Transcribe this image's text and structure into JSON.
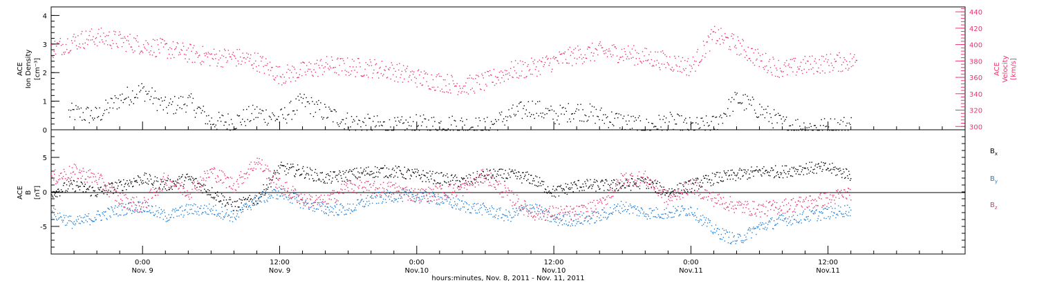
{
  "colors": {
    "black": "#000000",
    "pink": "#e8356b",
    "blue": "#1f7fd6"
  },
  "chart_data": [
    {
      "type": "scatter",
      "panel": "top",
      "ylabel_left_line1": "ACE",
      "ylabel_left_line2": "Ion Density",
      "ylabel_left_units": "[cm⁻³]",
      "ylabel_right_line1": "ACE",
      "ylabel_right_line2": "Velocity",
      "ylabel_right_units": "[km/s]",
      "ylim_left": [
        0,
        4.3
      ],
      "ylim_right": [
        296,
        446
      ],
      "yticks_left": [
        "0",
        "1",
        "2",
        "3",
        "4"
      ],
      "yticks_right": [
        "300",
        "320",
        "340",
        "360",
        "380",
        "400",
        "420",
        "440"
      ],
      "series": [
        {
          "color": "black",
          "axis": "left",
          "hours": [
            -6,
            -4,
            -2,
            0,
            2,
            4,
            6,
            8,
            10,
            12,
            14,
            16,
            18,
            20,
            22,
            24,
            26,
            28,
            30,
            32,
            34,
            36,
            38,
            40,
            42,
            44,
            46,
            48,
            50,
            52,
            54,
            56,
            58,
            60,
            62
          ],
          "values": [
            0.6,
            0.5,
            1.1,
            1.4,
            0.8,
            1.0,
            0.3,
            0.3,
            0.6,
            0.4,
            1.0,
            0.6,
            0.3,
            0.2,
            0.1,
            0.2,
            0.2,
            0.2,
            0.1,
            0.5,
            0.8,
            0.5,
            0.7,
            0.5,
            0.3,
            0.1,
            0.3,
            0.1,
            0.2,
            1.1,
            0.7,
            0.2,
            0.1,
            0.1,
            0.2
          ]
        },
        {
          "color": "pink",
          "axis": "right",
          "hours": [
            -8,
            -6,
            -4,
            -2,
            0,
            2,
            4,
            6,
            8,
            10,
            12,
            14,
            16,
            18,
            20,
            22,
            24,
            26,
            28,
            30,
            32,
            34,
            36,
            38,
            40,
            42,
            44,
            46,
            48,
            50,
            52,
            54,
            56,
            58,
            60,
            62
          ],
          "values": [
            395,
            405,
            410,
            405,
            400,
            395,
            390,
            385,
            385,
            380,
            363,
            368,
            375,
            373,
            372,
            368,
            360,
            355,
            350,
            355,
            368,
            372,
            380,
            388,
            392,
            390,
            385,
            380,
            373,
            412,
            400,
            382,
            370,
            375,
            378,
            380
          ]
        }
      ]
    },
    {
      "type": "scatter",
      "panel": "bottom",
      "ylabel_line1": "ACE",
      "ylabel_line2": "B",
      "ylabel_units": "[nT]",
      "ylim": [
        -9,
        9
      ],
      "yticks": [
        "-5",
        "0",
        "5"
      ],
      "series": [
        {
          "name": "Bx",
          "color": "black",
          "hours": [
            -8,
            -6,
            -4,
            -2,
            0,
            2,
            4,
            6,
            8,
            10,
            12,
            14,
            16,
            18,
            20,
            22,
            24,
            26,
            28,
            30,
            32,
            34,
            36,
            38,
            40,
            42,
            44,
            46,
            48,
            50,
            52,
            54,
            56,
            58,
            60,
            62
          ],
          "values": [
            0,
            1,
            0,
            1,
            2,
            1,
            2,
            0,
            -2,
            -1,
            3.5,
            3,
            2,
            2.5,
            3,
            3,
            2.5,
            2,
            1.5,
            2.5,
            2.5,
            2,
            0,
            1,
            1,
            1,
            1.5,
            0,
            1,
            2,
            2.5,
            3,
            3,
            3.5,
            3.5,
            2.5
          ]
        },
        {
          "name": "By",
          "color": "blue",
          "hours": [
            -8,
            -6,
            -4,
            -2,
            0,
            2,
            4,
            6,
            8,
            10,
            12,
            14,
            16,
            18,
            20,
            22,
            24,
            26,
            28,
            30,
            32,
            34,
            36,
            38,
            40,
            42,
            44,
            46,
            48,
            50,
            52,
            54,
            56,
            58,
            60,
            62
          ],
          "values": [
            -3,
            -4.5,
            -3.5,
            -2.5,
            -2,
            -3.5,
            -2.5,
            -2.5,
            -3.5,
            -1,
            0,
            -1.5,
            -2.5,
            -2.5,
            -1,
            -0.5,
            -0.5,
            -1,
            -2,
            -2.5,
            -3.5,
            -2,
            -4,
            -4,
            -3.5,
            -2,
            -3,
            -3,
            -2.5,
            -5.5,
            -7,
            -5,
            -4,
            -3.5,
            -3,
            -2.5
          ]
        },
        {
          "name": "Bz",
          "color": "pink",
          "hours": [
            -8,
            -6,
            -4,
            -2,
            0,
            2,
            4,
            6,
            8,
            10,
            12,
            14,
            16,
            18,
            20,
            22,
            24,
            26,
            28,
            30,
            32,
            34,
            36,
            38,
            40,
            42,
            44,
            46,
            48,
            50,
            52,
            54,
            56,
            58,
            60,
            62
          ],
          "values": [
            2,
            3,
            2,
            -1,
            -2,
            2,
            0,
            3,
            1,
            4.5,
            1,
            -1,
            -1.5,
            1,
            0.5,
            0.5,
            -0.5,
            0,
            0.5,
            2.5,
            -0.5,
            -3,
            -3,
            -3,
            -2,
            2,
            2,
            -1,
            1,
            -1,
            -2,
            -2.5,
            -2,
            -1.5,
            -1,
            0
          ]
        }
      ]
    }
  ],
  "legend": {
    "bx_main": "B",
    "bx_sub": "x",
    "by_main": "B",
    "by_sub": "y",
    "bz_main": "B",
    "bz_sub": "z"
  },
  "x_axis": {
    "time_labels": [
      "0:00",
      "12:00",
      "0:00",
      "12:00",
      "0:00",
      "12:00"
    ],
    "date_labels": [
      "Nov. 9",
      "Nov. 9",
      "Nov.10",
      "Nov.10",
      "Nov.11",
      "Nov.11"
    ],
    "tick_hours": [
      0,
      12,
      24,
      36,
      48,
      60
    ],
    "range_hours": [
      -8,
      72
    ],
    "title": "hours:minutes, Nov.  8, 2011 - Nov. 11, 2011"
  }
}
